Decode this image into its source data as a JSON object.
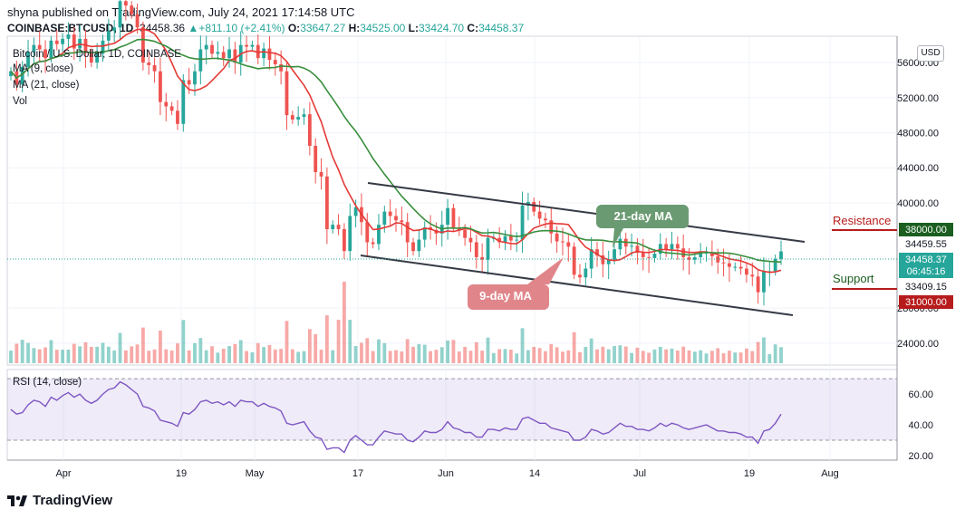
{
  "header": {
    "published": "shyna published on TradingView.com, July 24, 2021 17:14:58 UTC",
    "symbol": "COINBASE:BTCUSD, 1D",
    "price": "34458.36",
    "change": "+811.10 (+2.41%)",
    "o_label": "O:",
    "o": "33647.27",
    "h_label": "H:",
    "h": "34525.00",
    "l_label": "L:",
    "l": "33424.70",
    "c_label": "C:",
    "c": "34458.37"
  },
  "currency": "USD",
  "legend": {
    "title": "Bitcoin / U.S. Dollar, 1D, COINBASE",
    "ma9": "MA (9, close)",
    "ma21": "MA (21, close)",
    "vol": "Vol",
    "rsi": "RSI (14, close)"
  },
  "annotations": {
    "ma21_label": "21-day MA",
    "ma9_label": "9-day MA",
    "resistance": "Resistance",
    "support": "Support"
  },
  "price_tags": {
    "resistance_level": "38000.00",
    "upper": "34459.55",
    "last": "34458.37",
    "countdown": "06:45:16",
    "lower": "33409.15",
    "support_level": "31000.00"
  },
  "colors": {
    "up": "#26a69a",
    "down": "#ef5350",
    "ma9": "#e53935",
    "ma21": "#388e3c",
    "rsi": "#7e57c2",
    "resistance": "#b71c1c",
    "support": "#b71c1c"
  },
  "footer": {
    "brand": "TradingView"
  },
  "chart_data": [
    {
      "type": "candlestick",
      "title": "Bitcoin / U.S. Dollar, 1D, COINBASE",
      "x_tick_labels": [
        "Apr",
        "19",
        "May",
        "17",
        "Jun",
        "14",
        "Jul",
        "19",
        "Aug"
      ],
      "y_tick_labels": [
        "56000.00",
        "52000.00",
        "48000.00",
        "44000.00",
        "40000.00",
        "28000.00",
        "24000.00"
      ],
      "ylim": [
        21500,
        59000
      ],
      "closes": [
        55000,
        53500,
        55500,
        57200,
        58000,
        57500,
        56500,
        58500,
        58100,
        58700,
        59200,
        57600,
        58700,
        57100,
        56000,
        57000,
        58500,
        59600,
        60000,
        63000,
        62500,
        61500,
        60000,
        56000,
        55700,
        55000,
        51500,
        51000,
        50500,
        49000,
        54000,
        53500,
        55000,
        57500,
        58000,
        57000,
        57200,
        56500,
        57500,
        56000,
        58000,
        57800,
        58000,
        56500,
        57600,
        56300,
        55800,
        55000,
        50000,
        49500,
        49800,
        50100,
        46500,
        43500,
        43000,
        37000,
        37500,
        37000,
        34500,
        38500,
        39500,
        37800,
        35500,
        35300,
        37500,
        39000,
        38500,
        38000,
        37800,
        35500,
        34500,
        35800,
        37200,
        36900,
        36500,
        37500,
        39400,
        37200,
        36900,
        36000,
        35500,
        33800,
        33500,
        36000,
        36000,
        35500,
        36200,
        35700,
        35800,
        39700,
        40100,
        39000,
        38200,
        38000,
        36500,
        35600,
        35500,
        35000,
        31800,
        31500,
        32500,
        34700,
        34000,
        33000,
        33500,
        34700,
        35900,
        35000,
        35100,
        34300,
        33800,
        33700,
        34200,
        35300,
        34700,
        35300,
        34800,
        33800,
        33500,
        33800,
        34200,
        34300,
        33900,
        33200,
        33100,
        32700,
        32700,
        32500,
        31800,
        31600,
        29800,
        32200,
        32200,
        33600,
        34458
      ],
      "ma9_close_approx": "smooth overlay, ends near 33000",
      "ma21_close_approx": "smooth overlay, ends near 33500",
      "resistance": 38000,
      "support": 31000
    },
    {
      "type": "line",
      "title": "RSI (14, close)",
      "y_tick_labels": [
        "60.00",
        "40.00",
        "20.00"
      ],
      "ylim": [
        17,
        76
      ],
      "bands": [
        30,
        70
      ],
      "values": [
        50,
        47,
        48,
        53,
        56,
        55,
        52,
        58,
        56,
        59,
        61,
        58,
        60,
        56,
        54,
        56,
        60,
        63,
        64,
        68,
        66,
        63,
        60,
        52,
        51,
        49,
        43,
        42,
        41,
        39,
        48,
        47,
        50,
        55,
        56,
        54,
        55,
        53,
        55,
        52,
        56,
        55,
        55,
        52,
        54,
        52,
        51,
        49,
        41,
        40,
        41,
        42,
        36,
        32,
        31,
        24,
        25,
        25,
        22,
        30,
        33,
        30,
        27,
        27,
        32,
        36,
        35,
        34,
        34,
        30,
        29,
        32,
        36,
        35,
        35,
        37,
        42,
        38,
        37,
        35,
        35,
        32,
        32,
        37,
        37,
        36,
        38,
        37,
        37,
        44,
        45,
        43,
        41,
        41,
        38,
        37,
        36,
        35,
        30,
        30,
        32,
        37,
        36,
        34,
        35,
        38,
        41,
        39,
        39,
        37,
        37,
        36,
        38,
        41,
        39,
        41,
        40,
        38,
        37,
        38,
        39,
        40,
        38,
        36,
        36,
        35,
        35,
        34,
        32,
        32,
        28,
        36,
        37,
        41,
        47
      ]
    }
  ]
}
